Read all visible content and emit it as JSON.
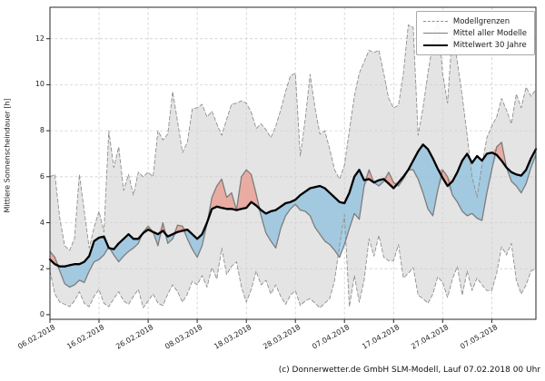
{
  "ylabel": "Mittlere Sonnenscheindauer [h]",
  "footer": "(c) Donnerwetter.de GmbH SLM-Modell, Lauf 07.02.2018 00 Uhr",
  "legend": [
    {
      "label": "Modellgrenzen",
      "line": "dashed",
      "color": "#8f8f8f",
      "width": 1
    },
    {
      "label": "Mittel aller Modelle",
      "line": "solid",
      "color": "#7d7d7d",
      "width": 1.5
    },
    {
      "label": "Mittelwert 30 Jahre",
      "line": "solid",
      "color": "#000000",
      "width": 2.5
    }
  ],
  "colors": {
    "band_fill": "#e0e0e0",
    "band_edge": "#8f8f8f",
    "fill_below": "#8cc0dd",
    "fill_above": "#eb9a8c",
    "model_mean_line": "#7d7d7d",
    "mean30_line": "#000000",
    "grid": "#cfcfcf",
    "frame": "#262626"
  },
  "chart_data": {
    "type": "line",
    "title": "",
    "xlabel": "",
    "ylabel": "Mittlere Sonnenscheindauer [h]",
    "grid": "dashed on",
    "legend_position": "upper right",
    "x_unit": "days since 06.02.2018",
    "x_range": [
      0,
      99
    ],
    "y_range": [
      -0.2,
      13.37
    ],
    "y_ticks": [
      0,
      2,
      4,
      6,
      8,
      10,
      12
    ],
    "x_tick_positions": [
      0,
      10,
      20,
      30,
      40,
      50,
      60,
      70,
      80,
      90
    ],
    "x_tick_labels": [
      "06.02.2018",
      "16.02.2018",
      "26.02.2018",
      "08.03.2018",
      "18.03.2018",
      "28.03.2018",
      "07.04.2018",
      "17.04.2018",
      "27.04.2018",
      "07.05.2018"
    ],
    "series": [
      {
        "name": "Modellgrenze oben",
        "style": "dashed",
        "values": [
          6.0,
          6.1,
          4.2,
          3.0,
          2.8,
          3.3,
          6.1,
          4.5,
          2.9,
          3.8,
          4.5,
          3.6,
          8.0,
          6.4,
          7.3,
          5.4,
          6.1,
          5.2,
          6.2,
          6.0,
          6.2,
          6.0,
          8.0,
          7.6,
          7.85,
          9.7,
          8.4,
          7.05,
          7.5,
          8.95,
          9.0,
          9.15,
          8.6,
          8.85,
          8.3,
          7.8,
          8.5,
          9.15,
          9.2,
          9.3,
          9.2,
          8.8,
          8.1,
          8.3,
          8.05,
          7.7,
          8.2,
          8.9,
          9.7,
          10.4,
          10.5,
          6.9,
          8.5,
          10.45,
          9.0,
          7.85,
          8.0,
          7.2,
          6.3,
          5.9,
          6.5,
          8.0,
          9.5,
          10.5,
          11.0,
          11.5,
          11.4,
          11.5,
          10.5,
          9.4,
          9.0,
          9.1,
          10.5,
          12.6,
          12.5,
          7.8,
          9.0,
          10.5,
          11.8,
          13.0,
          10.5,
          9.2,
          12.3,
          11.0,
          9.5,
          7.8,
          6.0,
          5.1,
          6.5,
          7.7,
          8.2,
          8.6,
          9.4,
          8.9,
          8.3,
          9.6,
          9.0,
          9.9,
          9.5,
          9.8
        ]
      },
      {
        "name": "Modellgrenze unten",
        "style": "dashed",
        "values": [
          1.9,
          0.9,
          0.55,
          0.45,
          0.35,
          0.6,
          1.0,
          0.5,
          0.35,
          0.8,
          1.1,
          0.5,
          0.35,
          0.7,
          1.0,
          0.6,
          0.45,
          0.8,
          1.1,
          0.3,
          0.6,
          0.9,
          0.5,
          0.4,
          0.9,
          1.3,
          1.0,
          0.55,
          0.9,
          1.45,
          1.3,
          1.7,
          1.2,
          2.05,
          1.55,
          2.9,
          1.75,
          2.1,
          2.3,
          1.2,
          0.55,
          1.1,
          1.9,
          1.3,
          1.5,
          0.9,
          1.3,
          0.8,
          0.45,
          0.85,
          1.05,
          0.4,
          0.6,
          0.7,
          0.5,
          0.3,
          0.5,
          0.7,
          1.5,
          3.0,
          4.35,
          0.35,
          1.7,
          0.55,
          1.5,
          3.3,
          2.55,
          3.45,
          2.5,
          2.35,
          2.35,
          3.05,
          1.6,
          1.8,
          2.05,
          0.85,
          0.7,
          0.5,
          0.9,
          1.65,
          1.4,
          0.75,
          1.55,
          2.1,
          0.85,
          1.9,
          1.05,
          1.6,
          1.3,
          1.05,
          1.05,
          1.8,
          2.95,
          2.6,
          3.1,
          1.5,
          0.9,
          1.3,
          1.9,
          2.0
        ]
      },
      {
        "name": "Mittel aller Modelle",
        "style": "solid gray",
        "values": [
          2.75,
          2.5,
          1.9,
          1.35,
          1.2,
          1.3,
          1.5,
          1.4,
          1.9,
          2.3,
          2.4,
          2.6,
          2.95,
          2.6,
          2.3,
          2.55,
          2.75,
          2.9,
          3.1,
          3.6,
          3.85,
          3.6,
          3.0,
          4.0,
          3.1,
          3.3,
          3.9,
          3.85,
          3.3,
          2.85,
          2.5,
          3.0,
          3.95,
          5.1,
          5.6,
          5.9,
          5.1,
          5.3,
          4.55,
          6.0,
          6.3,
          6.1,
          5.25,
          4.3,
          3.55,
          3.2,
          2.9,
          3.75,
          4.3,
          4.6,
          4.8,
          4.55,
          4.5,
          4.3,
          3.8,
          3.5,
          3.2,
          3.05,
          2.8,
          2.5,
          3.05,
          3.75,
          4.4,
          4.15,
          5.6,
          6.3,
          5.75,
          5.6,
          5.8,
          6.2,
          5.75,
          5.6,
          5.9,
          6.3,
          6.3,
          5.9,
          5.3,
          4.6,
          4.3,
          5.4,
          6.3,
          6.0,
          5.2,
          4.9,
          4.5,
          4.3,
          4.4,
          4.2,
          4.1,
          5.3,
          6.3,
          7.3,
          7.5,
          6.4,
          5.8,
          5.6,
          5.3,
          5.7,
          6.4,
          6.95
        ]
      },
      {
        "name": "Mittelwert 30 Jahre",
        "style": "solid black thick",
        "values": [
          2.4,
          2.2,
          2.1,
          2.1,
          2.15,
          2.2,
          2.2,
          2.3,
          2.55,
          3.2,
          3.35,
          3.4,
          2.9,
          2.85,
          3.1,
          3.3,
          3.5,
          3.3,
          3.3,
          3.55,
          3.7,
          3.6,
          3.5,
          3.65,
          3.4,
          3.5,
          3.6,
          3.65,
          3.7,
          3.5,
          3.3,
          3.5,
          4.0,
          4.6,
          4.7,
          4.65,
          4.6,
          4.6,
          4.55,
          4.6,
          4.65,
          4.9,
          4.75,
          4.55,
          4.4,
          4.5,
          4.55,
          4.7,
          4.85,
          4.9,
          5.0,
          5.2,
          5.35,
          5.5,
          5.55,
          5.6,
          5.5,
          5.3,
          5.1,
          4.9,
          4.85,
          5.3,
          6.0,
          6.3,
          5.85,
          5.9,
          5.75,
          5.85,
          5.9,
          5.7,
          5.5,
          5.75,
          6.0,
          6.3,
          6.7,
          7.1,
          7.4,
          7.2,
          6.8,
          6.35,
          5.95,
          5.6,
          5.8,
          6.2,
          6.7,
          7.0,
          6.6,
          6.9,
          6.7,
          7.0,
          7.05,
          6.95,
          6.7,
          6.4,
          6.2,
          6.1,
          6.05,
          6.3,
          6.8,
          7.2
        ]
      }
    ],
    "fills": [
      {
        "name": "Modellspanne",
        "between": [
          "Modellgrenze oben",
          "Modellgrenze unten"
        ],
        "color": "#e0e0e0"
      },
      {
        "name": "unter Mittelwert (blau)",
        "between": [
          "Mittelwert 30 Jahre",
          "Mittel aller Modelle"
        ],
        "where": "model mean < 30yr mean",
        "color": "#8cc0dd"
      },
      {
        "name": "ueber Mittelwert (rot)",
        "between": [
          "Mittel aller Modelle",
          "Mittelwert 30 Jahre"
        ],
        "where": "model mean > 30yr mean",
        "color": "#eb9a8c"
      }
    ]
  }
}
